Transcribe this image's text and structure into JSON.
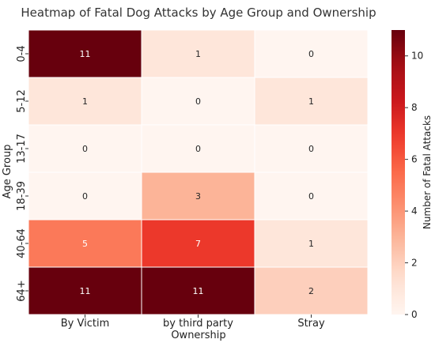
{
  "chart_data": {
    "type": "heatmap",
    "title": "Heatmap of Fatal Dog Attacks by Age Group and Ownership",
    "xlabel": "Ownership",
    "ylabel": "Age Group",
    "x_categories": [
      "By Victim",
      "by third party",
      "Stray"
    ],
    "y_categories": [
      "0-4",
      "5-12",
      "13-17",
      "18-39",
      "40-64",
      "64+"
    ],
    "values": [
      [
        11,
        1,
        0
      ],
      [
        1,
        0,
        1
      ],
      [
        0,
        0,
        0
      ],
      [
        0,
        3,
        0
      ],
      [
        5,
        7,
        1
      ],
      [
        11,
        11,
        2
      ]
    ],
    "colorbar": {
      "label": "Number of Fatal Attacks",
      "range": [
        0,
        11
      ],
      "ticks": [
        0,
        2,
        4,
        6,
        8,
        10
      ]
    },
    "colormap": "Reds",
    "colors": {
      "low": "#fff5f0",
      "high": "#67000d"
    }
  }
}
